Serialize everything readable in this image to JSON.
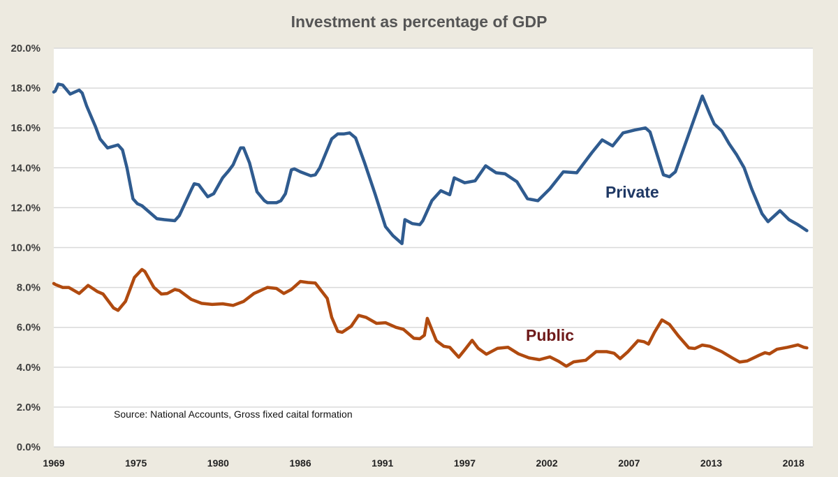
{
  "chart_data": {
    "type": "line",
    "title": "Investment as percentage of GDP",
    "xlabel": "",
    "ylabel": "",
    "ylim": [
      0,
      20
    ],
    "xlim": [
      1969,
      2019.8
    ],
    "yticks": [
      0,
      2,
      4,
      6,
      8,
      10,
      12,
      14,
      16,
      18,
      20
    ],
    "ytick_labels": [
      "0.0%",
      "2.0%",
      "4.0%",
      "6.0%",
      "8.0%",
      "10.0%",
      "12.0%",
      "14.0%",
      "16.0%",
      "18.0%",
      "20.0%"
    ],
    "xticks": [
      1969,
      1974.5,
      1980,
      1985.5,
      1991,
      1996.5,
      2002,
      2007.5,
      2013,
      2018.5
    ],
    "xtick_labels": [
      "1969",
      "1975",
      "1980",
      "1986",
      "1991",
      "1997",
      "2002",
      "2007",
      "2013",
      "2018"
    ],
    "grid": true,
    "annotation": "Source: National Accounts, Gross fixed caital formation",
    "series": [
      {
        "name": "Private",
        "color": "#2f5b8f",
        "label_color": "#1f3864",
        "points": [
          [
            1969.0,
            17.8
          ],
          [
            1969.1,
            17.85
          ],
          [
            1969.3,
            18.2
          ],
          [
            1969.6,
            18.15
          ],
          [
            1970.1,
            17.7
          ],
          [
            1970.7,
            17.9
          ],
          [
            1970.9,
            17.75
          ],
          [
            1971.2,
            17.1
          ],
          [
            1971.8,
            16.05
          ],
          [
            1972.1,
            15.45
          ],
          [
            1972.6,
            15.0
          ],
          [
            1973.3,
            15.15
          ],
          [
            1973.6,
            14.9
          ],
          [
            1973.9,
            14.0
          ],
          [
            1974.3,
            12.45
          ],
          [
            1974.6,
            12.2
          ],
          [
            1974.9,
            12.1
          ],
          [
            1975.9,
            11.45
          ],
          [
            1976.4,
            11.4
          ],
          [
            1977.1,
            11.35
          ],
          [
            1977.4,
            11.6
          ],
          [
            1978.2,
            12.9
          ],
          [
            1978.4,
            13.2
          ],
          [
            1978.7,
            13.15
          ],
          [
            1979.3,
            12.55
          ],
          [
            1979.7,
            12.7
          ],
          [
            1980.3,
            13.5
          ],
          [
            1980.7,
            13.85
          ],
          [
            1981.0,
            14.15
          ],
          [
            1981.2,
            14.5
          ],
          [
            1981.5,
            15.0
          ],
          [
            1981.7,
            15.0
          ],
          [
            1982.1,
            14.25
          ],
          [
            1982.6,
            12.8
          ],
          [
            1983.1,
            12.35
          ],
          [
            1983.3,
            12.25
          ],
          [
            1983.9,
            12.25
          ],
          [
            1984.2,
            12.35
          ],
          [
            1984.5,
            12.7
          ],
          [
            1984.9,
            13.9
          ],
          [
            1985.1,
            13.95
          ],
          [
            1985.5,
            13.8
          ],
          [
            1986.2,
            13.6
          ],
          [
            1986.5,
            13.65
          ],
          [
            1986.8,
            14.0
          ],
          [
            1987.6,
            15.45
          ],
          [
            1988.0,
            15.7
          ],
          [
            1988.4,
            15.7
          ],
          [
            1988.8,
            15.75
          ],
          [
            1989.2,
            15.5
          ],
          [
            1989.8,
            14.25
          ],
          [
            1990.5,
            12.7
          ],
          [
            1991.2,
            11.05
          ],
          [
            1991.7,
            10.6
          ],
          [
            1992.3,
            10.2
          ],
          [
            1992.5,
            11.4
          ],
          [
            1993.0,
            11.2
          ],
          [
            1993.5,
            11.15
          ],
          [
            1993.7,
            11.35
          ],
          [
            1994.3,
            12.35
          ],
          [
            1994.9,
            12.85
          ],
          [
            1995.5,
            12.65
          ],
          [
            1995.8,
            13.5
          ],
          [
            1996.5,
            13.25
          ],
          [
            1997.2,
            13.35
          ],
          [
            1997.9,
            14.1
          ],
          [
            1998.6,
            13.75
          ],
          [
            1999.2,
            13.7
          ],
          [
            2000.0,
            13.3
          ],
          [
            2000.7,
            12.45
          ],
          [
            2001.4,
            12.35
          ],
          [
            2002.2,
            12.95
          ],
          [
            2003.1,
            13.8
          ],
          [
            2004.0,
            13.75
          ],
          [
            2005.0,
            14.75
          ],
          [
            2005.7,
            15.4
          ],
          [
            2006.4,
            15.1
          ],
          [
            2007.1,
            15.75
          ],
          [
            2007.9,
            15.9
          ],
          [
            2008.6,
            16.0
          ],
          [
            2008.9,
            15.8
          ],
          [
            2009.8,
            13.65
          ],
          [
            2010.2,
            13.55
          ],
          [
            2010.6,
            13.8
          ],
          [
            2011.5,
            15.7
          ],
          [
            2012.4,
            17.6
          ],
          [
            2012.9,
            16.7
          ],
          [
            2013.2,
            16.2
          ],
          [
            2013.7,
            15.85
          ],
          [
            2014.2,
            15.2
          ],
          [
            2014.7,
            14.65
          ],
          [
            2015.2,
            14.0
          ],
          [
            2015.7,
            12.95
          ],
          [
            2016.4,
            11.7
          ],
          [
            2016.8,
            11.3
          ],
          [
            2017.6,
            11.85
          ],
          [
            2018.2,
            11.4
          ],
          [
            2018.8,
            11.15
          ],
          [
            2019.4,
            10.85
          ]
        ]
      },
      {
        "name": "Public",
        "color": "#b04a0f",
        "label_color": "#6e1a1a",
        "points": [
          [
            1969.0,
            8.2
          ],
          [
            1969.1,
            8.15
          ],
          [
            1969.6,
            8.0
          ],
          [
            1970.0,
            8.0
          ],
          [
            1970.7,
            7.7
          ],
          [
            1971.3,
            8.1
          ],
          [
            1971.9,
            7.8
          ],
          [
            1972.3,
            7.67
          ],
          [
            1973.0,
            6.97
          ],
          [
            1973.3,
            6.85
          ],
          [
            1973.8,
            7.3
          ],
          [
            1974.4,
            8.5
          ],
          [
            1974.9,
            8.9
          ],
          [
            1975.1,
            8.8
          ],
          [
            1975.7,
            8.0
          ],
          [
            1976.2,
            7.67
          ],
          [
            1976.6,
            7.7
          ],
          [
            1977.1,
            7.9
          ],
          [
            1977.4,
            7.85
          ],
          [
            1978.2,
            7.4
          ],
          [
            1978.9,
            7.2
          ],
          [
            1979.6,
            7.15
          ],
          [
            1980.3,
            7.18
          ],
          [
            1981.0,
            7.1
          ],
          [
            1981.7,
            7.3
          ],
          [
            1982.4,
            7.7
          ],
          [
            1983.3,
            8.0
          ],
          [
            1983.9,
            7.95
          ],
          [
            1984.4,
            7.7
          ],
          [
            1984.9,
            7.9
          ],
          [
            1985.5,
            8.3
          ],
          [
            1986.0,
            8.25
          ],
          [
            1986.5,
            8.22
          ],
          [
            1987.3,
            7.45
          ],
          [
            1987.6,
            6.5
          ],
          [
            1988.0,
            5.8
          ],
          [
            1988.3,
            5.75
          ],
          [
            1988.9,
            6.05
          ],
          [
            1989.4,
            6.6
          ],
          [
            1989.9,
            6.5
          ],
          [
            1990.6,
            6.2
          ],
          [
            1991.2,
            6.23
          ],
          [
            1991.9,
            6.0
          ],
          [
            1992.4,
            5.9
          ],
          [
            1993.1,
            5.45
          ],
          [
            1993.5,
            5.43
          ],
          [
            1993.8,
            5.6
          ],
          [
            1994.0,
            6.45
          ],
          [
            1994.6,
            5.33
          ],
          [
            1995.1,
            5.05
          ],
          [
            1995.5,
            5.0
          ],
          [
            1996.1,
            4.5
          ],
          [
            1996.5,
            4.87
          ],
          [
            1997.0,
            5.35
          ],
          [
            1997.4,
            4.95
          ],
          [
            1997.95,
            4.65
          ],
          [
            1998.7,
            4.95
          ],
          [
            1999.4,
            5.0
          ],
          [
            2000.1,
            4.67
          ],
          [
            2000.8,
            4.47
          ],
          [
            2001.5,
            4.38
          ],
          [
            2002.2,
            4.52
          ],
          [
            2002.8,
            4.29
          ],
          [
            2003.3,
            4.05
          ],
          [
            2003.8,
            4.27
          ],
          [
            2004.6,
            4.35
          ],
          [
            2005.3,
            4.78
          ],
          [
            2006.0,
            4.78
          ],
          [
            2006.5,
            4.7
          ],
          [
            2006.9,
            4.43
          ],
          [
            2007.4,
            4.76
          ],
          [
            2008.1,
            5.33
          ],
          [
            2008.5,
            5.28
          ],
          [
            2008.8,
            5.16
          ],
          [
            2009.2,
            5.75
          ],
          [
            2009.7,
            6.37
          ],
          [
            2010.2,
            6.15
          ],
          [
            2010.8,
            5.57
          ],
          [
            2011.5,
            4.97
          ],
          [
            2011.9,
            4.94
          ],
          [
            2012.4,
            5.11
          ],
          [
            2012.9,
            5.05
          ],
          [
            2013.7,
            4.78
          ],
          [
            2014.4,
            4.47
          ],
          [
            2014.9,
            4.26
          ],
          [
            2015.4,
            4.31
          ],
          [
            2016.2,
            4.6
          ],
          [
            2016.6,
            4.73
          ],
          [
            2016.9,
            4.67
          ],
          [
            2017.4,
            4.9
          ],
          [
            2018.1,
            5.0
          ],
          [
            2018.8,
            5.12
          ],
          [
            2019.2,
            5.0
          ],
          [
            2019.4,
            4.97
          ]
        ]
      }
    ]
  }
}
